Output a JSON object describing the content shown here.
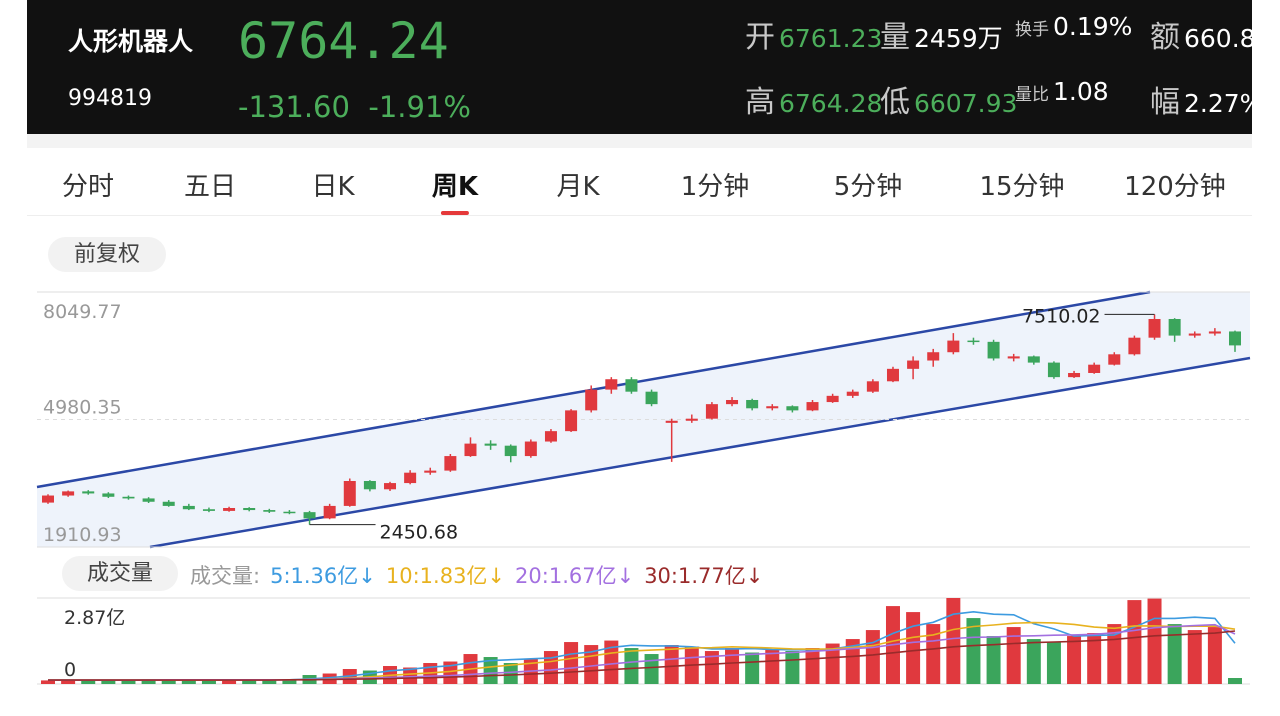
{
  "header": {
    "name": "人形机器人",
    "code": "994819",
    "price": "6764.24",
    "change": "-131.60",
    "change_pct": "-1.91%",
    "stats": [
      {
        "label": "开",
        "value": "6761.23"
      },
      {
        "label": "量",
        "value": "2459万"
      },
      {
        "label": "换手",
        "value": "0.19%"
      },
      {
        "label": "额",
        "value": "660.8"
      },
      {
        "label": "高",
        "value": "6764.28"
      },
      {
        "label": "低",
        "value": "6607.93"
      },
      {
        "label": "量比",
        "value": "1.08"
      },
      {
        "label": "幅",
        "value": "2.27%"
      }
    ]
  },
  "tabs": [
    {
      "label": "分时"
    },
    {
      "label": "五日"
    },
    {
      "label": "日K"
    },
    {
      "label": "周K",
      "selected": true
    },
    {
      "label": "月K"
    },
    {
      "label": "1分钟"
    },
    {
      "label": "5分钟"
    },
    {
      "label": "15分钟"
    },
    {
      "label": "120分钟"
    }
  ],
  "adjust_button": "前复权",
  "kline": {
    "type": "candlestick",
    "ylim": [
      1910.93,
      8049.77
    ],
    "yticks": [
      1910.93,
      4980.35,
      8049.77
    ],
    "up_color": "#e0393e",
    "down_color": "#3ba55c",
    "ohlc": [
      [
        2980,
        3180,
        2950,
        3150
      ],
      [
        3150,
        3270,
        3120,
        3250
      ],
      [
        3250,
        3280,
        3170,
        3200
      ],
      [
        3200,
        3230,
        3090,
        3120
      ],
      [
        3120,
        3150,
        3050,
        3080
      ],
      [
        3080,
        3110,
        2970,
        3000
      ],
      [
        3000,
        3040,
        2880,
        2900
      ],
      [
        2900,
        2950,
        2800,
        2820
      ],
      [
        2820,
        2860,
        2750,
        2780
      ],
      [
        2780,
        2880,
        2760,
        2850
      ],
      [
        2850,
        2870,
        2770,
        2800
      ],
      [
        2800,
        2830,
        2730,
        2760
      ],
      [
        2760,
        2800,
        2700,
        2750
      ],
      [
        2750,
        2780,
        2450.68,
        2600
      ],
      [
        2600,
        2950,
        2580,
        2900
      ],
      [
        2900,
        3560,
        2880,
        3500
      ],
      [
        3500,
        3520,
        3250,
        3300
      ],
      [
        3300,
        3480,
        3260,
        3450
      ],
      [
        3450,
        3760,
        3420,
        3700
      ],
      [
        3700,
        3820,
        3650,
        3750
      ],
      [
        3750,
        4150,
        3720,
        4100
      ],
      [
        4100,
        4550,
        4080,
        4400
      ],
      [
        4400,
        4480,
        4250,
        4350
      ],
      [
        4350,
        4380,
        3950,
        4100
      ],
      [
        4100,
        4500,
        4060,
        4450
      ],
      [
        4450,
        4750,
        4420,
        4700
      ],
      [
        4700,
        5230,
        4680,
        5200
      ],
      [
        5200,
        5800,
        5150,
        5700
      ],
      [
        5700,
        6000,
        5600,
        5950
      ],
      [
        5950,
        6000,
        5600,
        5650
      ],
      [
        5650,
        5700,
        5300,
        5350
      ],
      [
        4900,
        5000,
        3960,
        4950
      ],
      [
        4950,
        5100,
        4900,
        5000
      ],
      [
        5000,
        5400,
        4980,
        5350
      ],
      [
        5350,
        5520,
        5300,
        5450
      ],
      [
        5450,
        5480,
        5200,
        5250
      ],
      [
        5250,
        5350,
        5200,
        5300
      ],
      [
        5300,
        5320,
        5150,
        5200
      ],
      [
        5200,
        5450,
        5180,
        5400
      ],
      [
        5400,
        5600,
        5380,
        5550
      ],
      [
        5550,
        5700,
        5500,
        5650
      ],
      [
        5650,
        5950,
        5620,
        5900
      ],
      [
        5900,
        6250,
        5880,
        6200
      ],
      [
        6200,
        6500,
        5950,
        6400
      ],
      [
        6400,
        6680,
        6250,
        6600
      ],
      [
        6600,
        7060,
        6550,
        6880
      ],
      [
        6880,
        6950,
        6780,
        6850
      ],
      [
        6850,
        6900,
        6400,
        6450
      ],
      [
        6450,
        6560,
        6380,
        6500
      ],
      [
        6500,
        6520,
        6300,
        6350
      ],
      [
        6350,
        6380,
        5960,
        6000
      ],
      [
        6000,
        6150,
        5980,
        6100
      ],
      [
        6100,
        6350,
        6080,
        6300
      ],
      [
        6300,
        6600,
        6280,
        6550
      ],
      [
        6550,
        7000,
        6520,
        6950
      ],
      [
        6950,
        7510.02,
        6900,
        7400
      ],
      [
        7400,
        7420,
        6850,
        7000
      ],
      [
        7000,
        7100,
        6950,
        7050
      ],
      [
        7050,
        7180,
        7000,
        7100
      ],
      [
        7100,
        7120,
        6607.93,
        6764.24
      ]
    ]
  },
  "volume": {
    "type": "bar",
    "button": "成交量",
    "legend_title": "成交量:",
    "ylim": [
      0,
      2.87
    ],
    "yticks": [
      0,
      {
        "value": 2.87,
        "label": "2.87亿"
      }
    ],
    "values": [
      0.12,
      0.15,
      0.13,
      0.12,
      0.14,
      0.16,
      0.15,
      0.13,
      0.12,
      0.14,
      0.13,
      0.15,
      0.14,
      0.3,
      0.35,
      0.5,
      0.45,
      0.6,
      0.55,
      0.7,
      0.75,
      1.0,
      0.9,
      0.7,
      0.85,
      1.1,
      1.4,
      1.3,
      1.45,
      1.2,
      1.0,
      1.3,
      1.25,
      1.1,
      1.2,
      1.05,
      1.15,
      1.1,
      1.2,
      1.35,
      1.5,
      1.8,
      2.6,
      2.4,
      2.0,
      2.87,
      2.2,
      1.6,
      1.9,
      1.5,
      1.4,
      1.6,
      1.7,
      2.0,
      2.8,
      2.85,
      2.0,
      1.8,
      1.9,
      0.2
    ],
    "series": [
      {
        "name": "5:1.36亿↓",
        "color": "#3d9be0",
        "values": [
          0.13,
          0.13,
          0.13,
          0.13,
          0.13,
          0.14,
          0.14,
          0.14,
          0.14,
          0.14,
          0.14,
          0.14,
          0.14,
          0.17,
          0.21,
          0.27,
          0.35,
          0.44,
          0.49,
          0.56,
          0.61,
          0.71,
          0.78,
          0.81,
          0.84,
          0.87,
          1.0,
          1.07,
          1.22,
          1.29,
          1.27,
          1.27,
          1.24,
          1.17,
          1.17,
          1.18,
          1.15,
          1.14,
          1.14,
          1.17,
          1.27,
          1.38,
          1.69,
          1.93,
          2.06,
          2.33,
          2.41,
          2.33,
          2.31,
          2.01,
          1.84,
          1.6,
          1.62,
          1.64,
          1.9,
          2.19,
          2.19,
          2.23,
          2.19,
          1.36
        ]
      },
      {
        "name": "10:1.83亿↓",
        "color": "#e8b21f",
        "values": [
          0.13,
          0.13,
          0.13,
          0.13,
          0.13,
          0.13,
          0.13,
          0.13,
          0.13,
          0.13,
          0.14,
          0.14,
          0.14,
          0.15,
          0.17,
          0.2,
          0.24,
          0.29,
          0.33,
          0.37,
          0.42,
          0.5,
          0.57,
          0.63,
          0.69,
          0.75,
          0.85,
          0.93,
          1.03,
          1.1,
          1.13,
          1.16,
          1.2,
          1.21,
          1.24,
          1.22,
          1.2,
          1.17,
          1.16,
          1.17,
          1.22,
          1.28,
          1.43,
          1.56,
          1.64,
          1.82,
          1.92,
          1.97,
          2.03,
          2.05,
          2.04,
          1.99,
          1.9,
          1.86,
          1.94,
          1.94,
          1.92,
          1.93,
          1.93,
          1.83
        ]
      },
      {
        "name": "20:1.67亿↓",
        "color": "#a370e0",
        "values": [
          0.13,
          0.13,
          0.13,
          0.13,
          0.13,
          0.13,
          0.14,
          0.14,
          0.14,
          0.14,
          0.14,
          0.14,
          0.14,
          0.15,
          0.16,
          0.18,
          0.2,
          0.22,
          0.24,
          0.26,
          0.28,
          0.32,
          0.36,
          0.39,
          0.43,
          0.47,
          0.53,
          0.6,
          0.67,
          0.73,
          0.78,
          0.83,
          0.88,
          0.92,
          0.96,
          0.99,
          1.02,
          1.05,
          1.09,
          1.13,
          1.18,
          1.22,
          1.31,
          1.39,
          1.44,
          1.52,
          1.56,
          1.57,
          1.6,
          1.61,
          1.63,
          1.64,
          1.66,
          1.71,
          1.79,
          1.88,
          1.92,
          1.95,
          1.98,
          1.67
        ]
      },
      {
        "name": "30:1.77亿↓",
        "color": "#9a2b2b",
        "values": [
          0.13,
          0.13,
          0.13,
          0.13,
          0.13,
          0.13,
          0.13,
          0.13,
          0.13,
          0.13,
          0.13,
          0.13,
          0.14,
          0.14,
          0.15,
          0.16,
          0.17,
          0.18,
          0.2,
          0.21,
          0.23,
          0.25,
          0.28,
          0.3,
          0.33,
          0.36,
          0.4,
          0.44,
          0.48,
          0.52,
          0.55,
          0.59,
          0.63,
          0.66,
          0.7,
          0.73,
          0.77,
          0.8,
          0.84,
          0.88,
          0.92,
          0.97,
          1.04,
          1.11,
          1.17,
          1.24,
          1.28,
          1.31,
          1.35,
          1.38,
          1.4,
          1.42,
          1.45,
          1.49,
          1.55,
          1.61,
          1.64,
          1.67,
          1.7,
          1.77
        ]
      }
    ]
  }
}
